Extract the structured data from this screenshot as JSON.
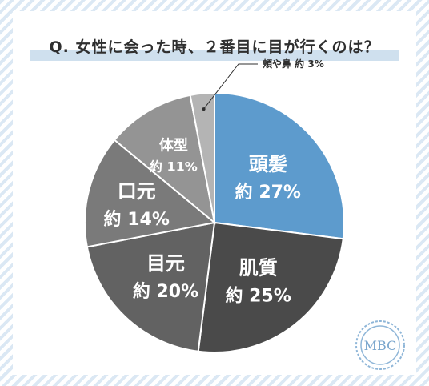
{
  "title": "Q. 女性に会った時、２番目に目が行くのは？",
  "logo_text": "MBC",
  "chart_data": {
    "type": "pie",
    "title": "Q. 女性に会った時、２番目に目が行くのは？",
    "slices": [
      {
        "label": "頭髪",
        "value_label": "約 27%",
        "value": 27,
        "color": "#5d9bcd",
        "text_color": "#ffffff"
      },
      {
        "label": "肌質",
        "value_label": "約 25%",
        "value": 25,
        "color": "#4a4a4a",
        "text_color": "#ffffff"
      },
      {
        "label": "目元",
        "value_label": "約 20%",
        "value": 20,
        "color": "#626262",
        "text_color": "#ffffff"
      },
      {
        "label": "口元",
        "value_label": "約 14%",
        "value": 14,
        "color": "#7a7a7a",
        "text_color": "#ffffff"
      },
      {
        "label": "体型",
        "value_label": "約 11%",
        "value": 11,
        "color": "#949494",
        "text_color": "#ffffff"
      },
      {
        "label": "頬や鼻",
        "value_label": "約 3%",
        "value": 3,
        "color": "#b4b4b4",
        "text_color": "#2f2f2f"
      }
    ]
  }
}
